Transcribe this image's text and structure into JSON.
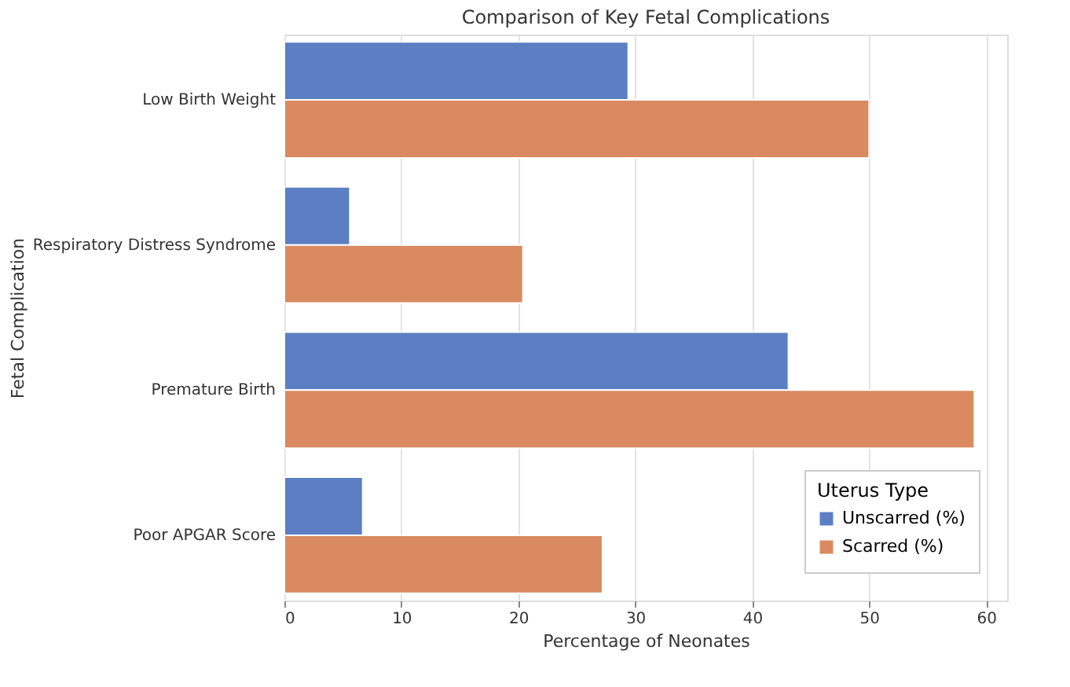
{
  "chart_data": {
    "type": "bar",
    "orientation": "horizontal",
    "title": "Comparison of Key Fetal Complications",
    "xlabel": "Percentage of Neonates",
    "ylabel": "Fetal Complication",
    "legend_title": "Uterus Type",
    "categories": [
      "Low Birth Weight",
      "Respiratory Distress Syndrome",
      "Premature Birth",
      "Poor APGAR Score"
    ],
    "series": [
      {
        "name": "Unscarred (%)",
        "color": "#5b7fc2",
        "values": [
          29.4,
          5.6,
          43.1,
          6.7
        ]
      },
      {
        "name": "Scarred (%)",
        "color": "#d98a60",
        "values": [
          50,
          20.4,
          59.0,
          27.2
        ]
      }
    ],
    "xlim": [
      0,
      61.8
    ],
    "xticks": [
      0,
      10,
      20,
      30,
      40,
      50,
      60
    ],
    "grid": "x",
    "legend": "bottom right"
  }
}
